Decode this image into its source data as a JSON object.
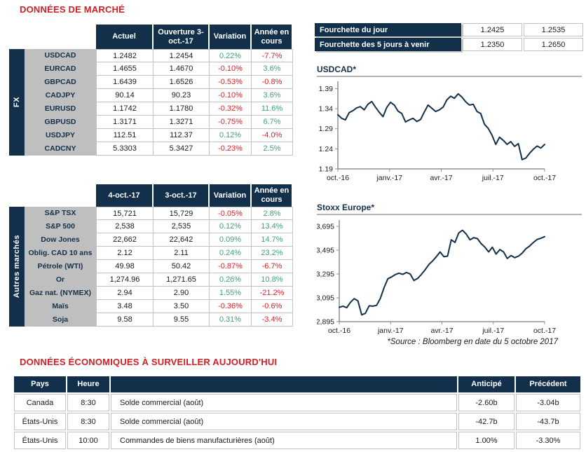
{
  "titles": {
    "market": "DONNÉES DE MARCHÉ",
    "econ": "DONNÉES ÉCONOMIQUES À SURVEILLER AUJOURD'HUI",
    "source": "*Source : Bloomberg en date du 5 octobre 2017"
  },
  "colors": {
    "navy": "#12304a",
    "red_title": "#d21f26",
    "green_value": "#3ca374",
    "red_value": "#e51b23",
    "grey_label": "#bfbfbf",
    "cell_border": "#c2c2c2",
    "axis_grey": "#8f8f8f",
    "rule_grey": "#b3b3b3"
  },
  "fourchette": {
    "rows": [
      {
        "label": "Fourchette du jour",
        "low": "1.2425",
        "high": "1.2535"
      },
      {
        "label": "Fourchette des 5 jours à venir",
        "low": "1.2350",
        "high": "1.2650"
      }
    ]
  },
  "fx_table": {
    "group": "FX",
    "headers": [
      "Actuel",
      "Ouverture 3-oct.-17",
      "Variation",
      "Année en cours"
    ],
    "rows": [
      [
        "USDCAD",
        "1.2482",
        "1.2454",
        "0.22%",
        "-7.7%"
      ],
      [
        "EURCAD",
        "1.4655",
        "1.4670",
        "-0.10%",
        "3.6%"
      ],
      [
        "GBPCAD",
        "1.6439",
        "1.6526",
        "-0.53%",
        "-0.8%"
      ],
      [
        "CADJPY",
        "90.14",
        "90.23",
        "-0.10%",
        "3.6%"
      ],
      [
        "EURUSD",
        "1.1742",
        "1.1780",
        "-0.32%",
        "11.6%"
      ],
      [
        "GBPUSD",
        "1.3171",
        "1.3271",
        "-0.75%",
        "6.7%"
      ],
      [
        "USDJPY",
        "112.51",
        "112.37",
        "0.12%",
        "-4.0%"
      ],
      [
        "CADCNY",
        "5.3303",
        "5.3427",
        "-0.23%",
        "2.5%"
      ]
    ]
  },
  "markets_table": {
    "group": "Autres marchés",
    "headers": [
      "4-oct.-17",
      "3-oct.-17",
      "Variation",
      "Année en cours"
    ],
    "rows": [
      [
        "S&P TSX",
        "15,721",
        "15,729",
        "-0.05%",
        "2.8%"
      ],
      [
        "S&P 500",
        "2,538",
        "2,535",
        "0.12%",
        "13.4%"
      ],
      [
        "Dow Jones",
        "22,662",
        "22,642",
        "0.09%",
        "14.7%"
      ],
      [
        "Oblig. CAD 10 ans",
        "2.12",
        "2.11",
        "0.24%",
        "23.2%"
      ],
      [
        "Pétrole (WTI)",
        "49.98",
        "50.42",
        "-0.87%",
        "-6.7%"
      ],
      [
        "Or",
        "1,274.96",
        "1,271.65",
        "0.26%",
        "10.8%"
      ],
      [
        "Gaz nat. (NYMEX)",
        "2.94",
        "2.90",
        "1.55%",
        "-21.2%"
      ],
      [
        "Maïs",
        "3.48",
        "3.50",
        "-0.36%",
        "-0.6%"
      ],
      [
        "Soja",
        "9.58",
        "9.55",
        "0.31%",
        "-3.4%"
      ]
    ]
  },
  "econ_table": {
    "headers": [
      "Pays",
      "Heure",
      "",
      "Anticipé",
      "Précédent"
    ],
    "rows": [
      [
        "Canada",
        "8:30",
        "Solde commercial (août)",
        "-2.60b",
        "-3.04b"
      ],
      [
        "États-Unis",
        "8:30",
        "Solde commercial (août)",
        "-42.7b",
        "-43.7b"
      ],
      [
        "États-Unis",
        "10:00",
        "Commandes de biens manufacturières (août)",
        "1.00%",
        "-3.30%"
      ]
    ]
  },
  "chart_data": [
    {
      "type": "line",
      "title": "USDCAD*",
      "xlabel": "",
      "ylabel": "",
      "x_labels": [
        "oct.-16",
        "janv.-17",
        "avr.-17",
        "juil.-17",
        "oct.-17"
      ],
      "y_ticks": [
        1.19,
        1.24,
        1.29,
        1.34,
        1.39
      ],
      "y_tick_labels": [
        "1.19",
        "1.24",
        "1.29",
        "1.34",
        "1.39"
      ],
      "ylim": [
        1.19,
        1.403
      ],
      "grid": false,
      "legend": false,
      "values": [
        1.325,
        1.316,
        1.312,
        1.33,
        1.335,
        1.342,
        1.345,
        1.337,
        1.351,
        1.358,
        1.344,
        1.331,
        1.32,
        1.343,
        1.356,
        1.349,
        1.334,
        1.328,
        1.307,
        1.312,
        1.316,
        1.308,
        1.313,
        1.332,
        1.349,
        1.341,
        1.333,
        1.337,
        1.344,
        1.362,
        1.371,
        1.366,
        1.377,
        1.369,
        1.357,
        1.349,
        1.351,
        1.333,
        1.328,
        1.301,
        1.291,
        1.274,
        1.251,
        1.269,
        1.261,
        1.251,
        1.258,
        1.246,
        1.253,
        1.213,
        1.217,
        1.229,
        1.239,
        1.247,
        1.242,
        1.251
      ]
    },
    {
      "type": "line",
      "title": "Stoxx Europe*",
      "xlabel": "",
      "ylabel": "",
      "x_labels": [
        "oct.-16",
        "janv.-17",
        "avr.-17",
        "juil.-17",
        "oct.-17"
      ],
      "y_ticks": [
        2895,
        3095,
        3295,
        3495,
        3695
      ],
      "y_tick_labels": [
        "2,895",
        "3,095",
        "3,295",
        "3,495",
        "3,695"
      ],
      "ylim": [
        2895,
        3730
      ],
      "grid": false,
      "legend": false,
      "values": [
        3015,
        3025,
        3012,
        3058,
        3088,
        3070,
        2952,
        2965,
        3028,
        3025,
        3032,
        3090,
        3180,
        3255,
        3270,
        3290,
        3302,
        3292,
        3308,
        3295,
        3240,
        3258,
        3292,
        3330,
        3375,
        3405,
        3440,
        3480,
        3440,
        3445,
        3582,
        3560,
        3640,
        3662,
        3630,
        3582,
        3600,
        3592,
        3550,
        3520,
        3480,
        3520,
        3462,
        3500,
        3480,
        3425,
        3450,
        3432,
        3445,
        3470,
        3508,
        3530,
        3560,
        3585,
        3595,
        3608
      ]
    }
  ]
}
